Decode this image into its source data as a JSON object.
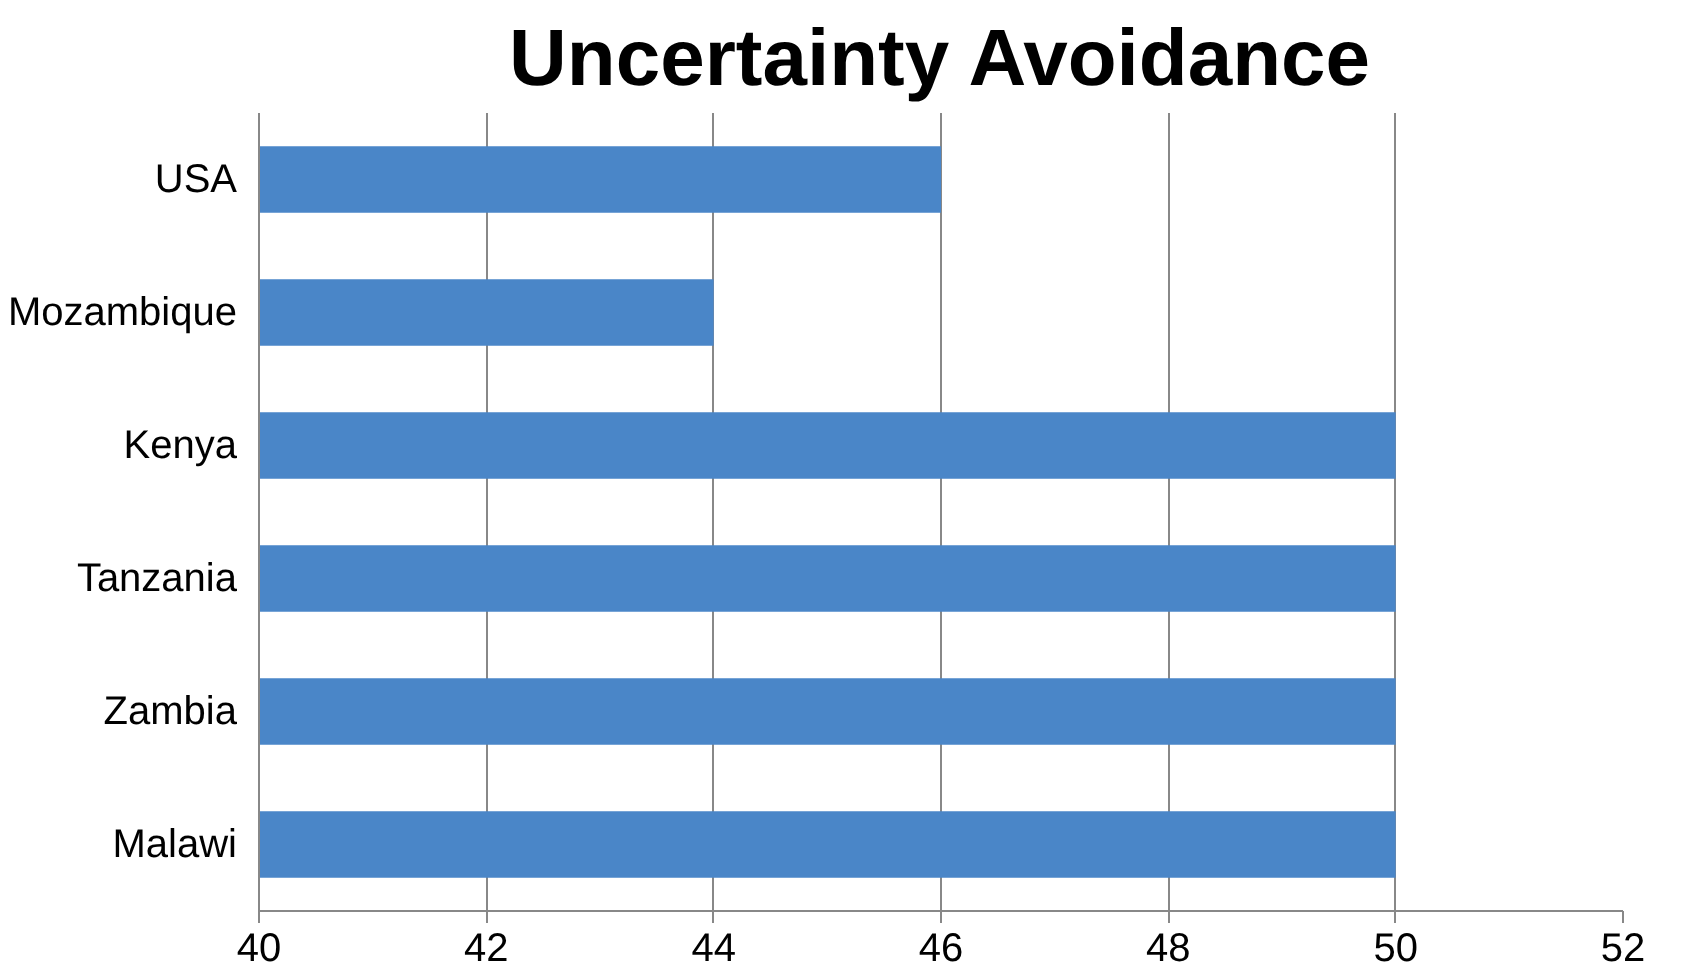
{
  "chart_data": {
    "type": "bar",
    "orientation": "horizontal",
    "title": "Uncertainty Avoidance",
    "categories": [
      "USA",
      "Mozambique",
      "Kenya",
      "Tanzania",
      "Zambia",
      "Malawi"
    ],
    "values": [
      46,
      44,
      50,
      50,
      50,
      50
    ],
    "color": "#4a86c8",
    "xlim": [
      40,
      52
    ],
    "xticks": [
      40,
      42,
      44,
      46,
      48,
      50,
      52
    ],
    "grid": "x"
  }
}
